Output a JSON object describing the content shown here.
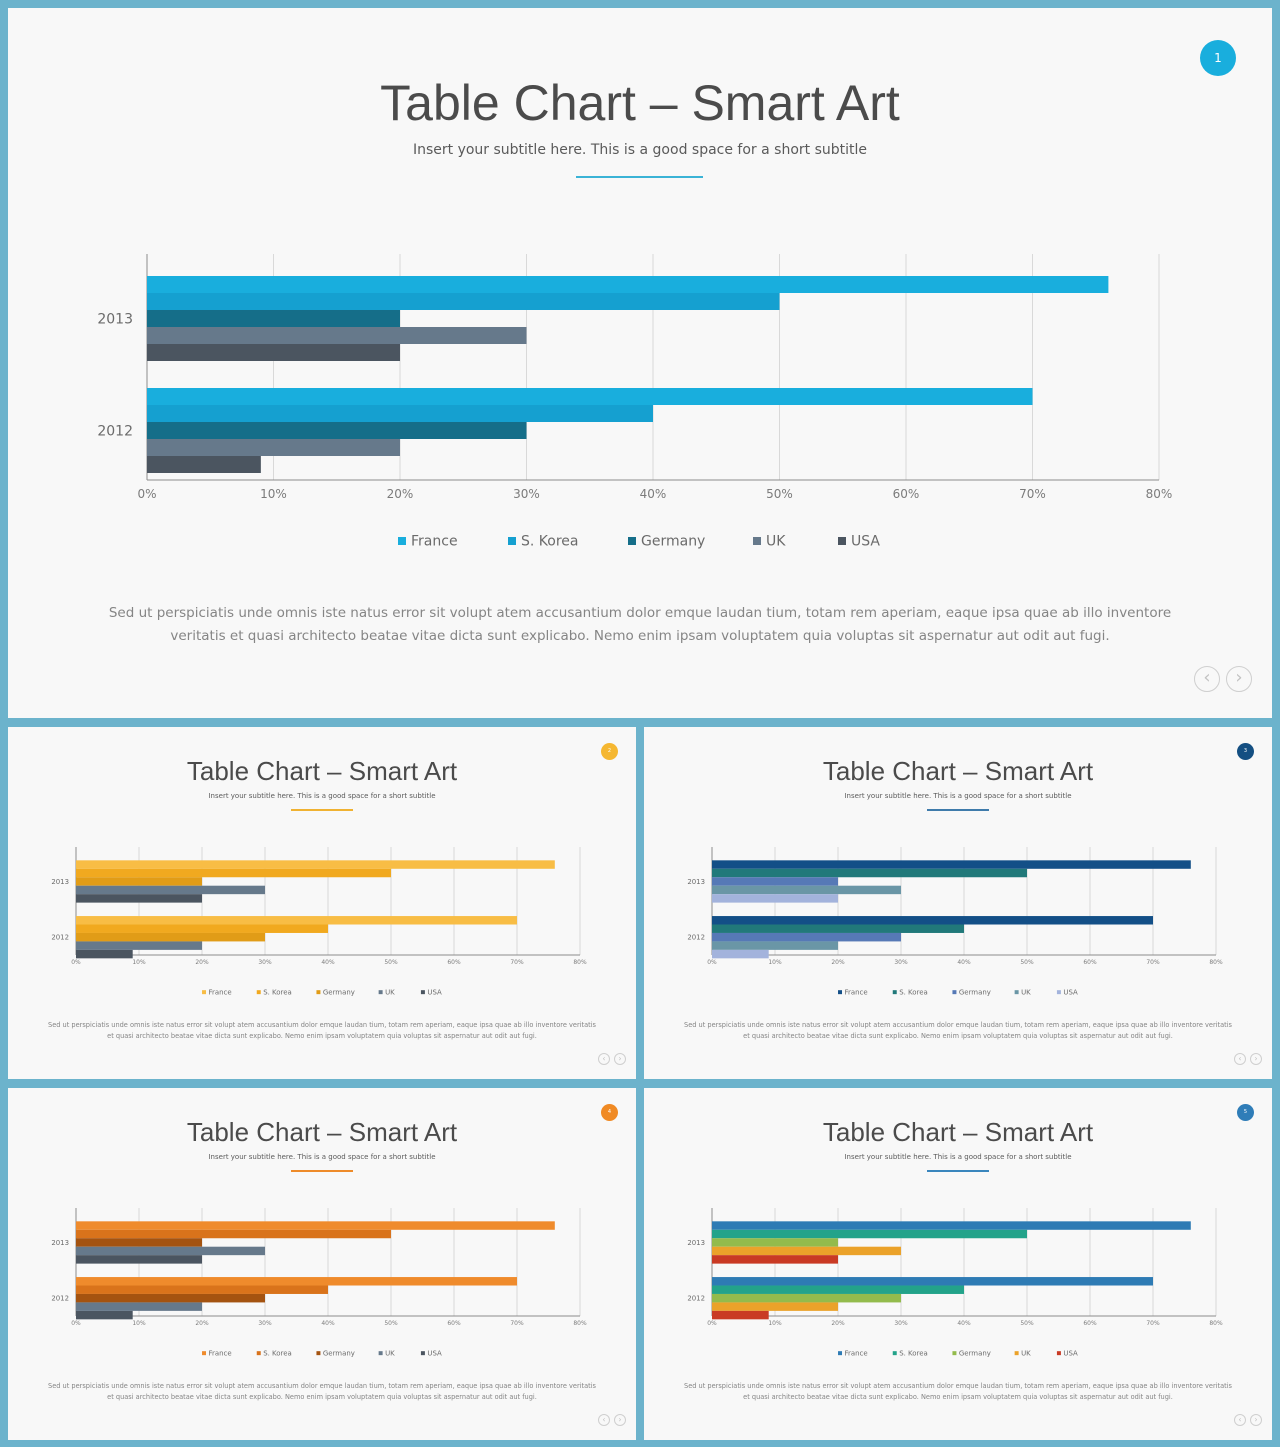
{
  "chart_data": [
    {
      "type": "bar",
      "orientation": "horizontal",
      "title": "Table Chart – Smart Art",
      "categories": [
        "2013",
        "2012"
      ],
      "xlim": [
        0,
        80
      ],
      "x_ticks": [
        "0%",
        "10%",
        "20%",
        "30%",
        "40%",
        "50%",
        "60%",
        "70%",
        "80%"
      ],
      "grid": true,
      "legend_position": "bottom",
      "series": [
        {
          "name": "France",
          "values": [
            76,
            70
          ]
        },
        {
          "name": "S. Korea",
          "values": [
            50,
            40
          ]
        },
        {
          "name": "Germany",
          "values": [
            20,
            30
          ]
        },
        {
          "name": "UK",
          "values": [
            30,
            20
          ]
        },
        {
          "name": "USA",
          "values": [
            20,
            9
          ]
        }
      ]
    },
    {
      "type": "bar",
      "orientation": "horizontal",
      "title": "Table Chart – Smart Art",
      "categories": [
        "2013",
        "2012"
      ],
      "xlim": [
        0,
        80
      ],
      "x_ticks": [
        "0%",
        "10%",
        "20%",
        "30%",
        "40%",
        "50%",
        "60%",
        "70%",
        "80%"
      ],
      "grid": true,
      "legend_position": "bottom",
      "series": [
        {
          "name": "France",
          "values": [
            76,
            70
          ]
        },
        {
          "name": "S. Korea",
          "values": [
            50,
            40
          ]
        },
        {
          "name": "Germany",
          "values": [
            20,
            30
          ]
        },
        {
          "name": "UK",
          "values": [
            30,
            20
          ]
        },
        {
          "name": "USA",
          "values": [
            20,
            9
          ]
        }
      ]
    },
    {
      "type": "bar",
      "orientation": "horizontal",
      "title": "Table Chart – Smart Art",
      "categories": [
        "2013",
        "2012"
      ],
      "xlim": [
        0,
        80
      ],
      "x_ticks": [
        "0%",
        "10%",
        "20%",
        "30%",
        "40%",
        "50%",
        "60%",
        "70%",
        "80%"
      ],
      "grid": true,
      "legend_position": "bottom",
      "series": [
        {
          "name": "France",
          "values": [
            76,
            70
          ]
        },
        {
          "name": "S. Korea",
          "values": [
            50,
            40
          ]
        },
        {
          "name": "Germany",
          "values": [
            20,
            30
          ]
        },
        {
          "name": "UK",
          "values": [
            30,
            20
          ]
        },
        {
          "name": "USA",
          "values": [
            20,
            9
          ]
        }
      ]
    },
    {
      "type": "bar",
      "orientation": "horizontal",
      "title": "Table Chart – Smart Art",
      "categories": [
        "2013",
        "2012"
      ],
      "xlim": [
        0,
        80
      ],
      "x_ticks": [
        "0%",
        "10%",
        "20%",
        "30%",
        "40%",
        "50%",
        "60%",
        "70%",
        "80%"
      ],
      "grid": true,
      "legend_position": "bottom",
      "series": [
        {
          "name": "France",
          "values": [
            76,
            70
          ]
        },
        {
          "name": "S. Korea",
          "values": [
            50,
            40
          ]
        },
        {
          "name": "Germany",
          "values": [
            20,
            30
          ]
        },
        {
          "name": "UK",
          "values": [
            30,
            20
          ]
        },
        {
          "name": "USA",
          "values": [
            20,
            9
          ]
        }
      ]
    },
    {
      "type": "bar",
      "orientation": "horizontal",
      "title": "Table Chart – Smart Art",
      "categories": [
        "2013",
        "2012"
      ],
      "xlim": [
        0,
        80
      ],
      "x_ticks": [
        "0%",
        "10%",
        "20%",
        "30%",
        "40%",
        "50%",
        "60%",
        "70%",
        "80%"
      ],
      "grid": true,
      "legend_position": "bottom",
      "series": [
        {
          "name": "France",
          "values": [
            76,
            70
          ]
        },
        {
          "name": "S. Korea",
          "values": [
            50,
            40
          ]
        },
        {
          "name": "Germany",
          "values": [
            20,
            30
          ]
        },
        {
          "name": "UK",
          "values": [
            30,
            20
          ]
        },
        {
          "name": "USA",
          "values": [
            20,
            9
          ]
        }
      ]
    }
  ],
  "slides": [
    {
      "title": "Table Chart – Smart Art",
      "subtitle": "Insert your subtitle here. This is a good space for a short subtitle",
      "badge": "1",
      "badge_color": "#19aedd",
      "accent_color": "#3bb3d6",
      "palette": [
        "#19aedd",
        "#15a0d0",
        "#156e89",
        "#66798b",
        "#4b5560"
      ],
      "body": "Sed ut perspiciatis unde omnis iste natus error sit volupt atem accusantium dolor emque laudan tium, totam rem aperiam, eaque ipsa quae ab illo inventore veritatis et quasi architecto beatae vitae dicta sunt explicabo. Nemo enim ipsam voluptatem quia voluptas sit aspernatur aut odit aut fugi.",
      "nav_prev": "‹",
      "nav_next": "›"
    },
    {
      "title": "Table Chart – Smart Art",
      "subtitle": "Insert your subtitle here. This is a good space for a short subtitle",
      "badge": "2",
      "badge_color": "#f5b731",
      "accent_color": "#f0b232",
      "palette": [
        "#f8bd45",
        "#f1a91f",
        "#e19c17",
        "#66798b",
        "#4b5560"
      ],
      "body": "Sed ut perspiciatis unde omnis iste natus error sit volupt atem accusantium dolor emque laudan tium, totam rem aperiam, eaque ipsa quae ab illo inventore veritatis et quasi architecto beatae vitae dicta sunt explicabo. Nemo enim ipsam voluptatem quia voluptas sit aspernatur aut odit aut fugi.",
      "nav_prev": "‹",
      "nav_next": "›"
    },
    {
      "title": "Table Chart – Smart Art",
      "subtitle": "Insert your subtitle here. This is a good space for a short subtitle",
      "badge": "3",
      "badge_color": "#144f82",
      "accent_color": "#3f7bab",
      "palette": [
        "#134f87",
        "#21797a",
        "#5679b6",
        "#6a96a6",
        "#a3b3dc"
      ],
      "body": "Sed ut perspiciatis unde omnis iste natus error sit volupt atem accusantium dolor emque laudan tium, totam rem aperiam, eaque ipsa quae ab illo inventore veritatis et quasi architecto beatae vitae dicta sunt explicabo. Nemo enim ipsam voluptatem quia voluptas sit aspernatur aut odit aut fugi.",
      "nav_prev": "‹",
      "nav_next": "›"
    },
    {
      "title": "Table Chart – Smart Art",
      "subtitle": "Insert your subtitle here. This is a good space for a short subtitle",
      "badge": "4",
      "badge_color": "#f08a24",
      "accent_color": "#ee8b2a",
      "palette": [
        "#ef8b2c",
        "#d9731b",
        "#a45310",
        "#66798b",
        "#4b5560"
      ],
      "body": "Sed ut perspiciatis unde omnis iste natus error sit volupt atem accusantium dolor emque laudan tium, totam rem aperiam, eaque ipsa quae ab illo inventore veritatis et quasi architecto beatae vitae dicta sunt explicabo. Nemo enim ipsam voluptatem quia voluptas sit aspernatur aut odit aut fugi.",
      "nav_prev": "‹",
      "nav_next": "›"
    },
    {
      "title": "Table Chart – Smart Art",
      "subtitle": "Insert your subtitle here. This is a good space for a short subtitle",
      "badge": "5",
      "badge_color": "#2f7db8",
      "accent_color": "#3a86bd",
      "palette": [
        "#2e7bb4",
        "#23a38a",
        "#93bb4c",
        "#eba22a",
        "#c93a24"
      ],
      "body": "Sed ut perspiciatis unde omnis iste natus error sit volupt atem accusantium dolor emque laudan tium, totam rem aperiam, eaque ipsa quae ab illo inventore veritatis et quasi architecto beatae vitae dicta sunt explicabo. Nemo enim ipsam voluptatem quia voluptas sit aspernatur aut odit aut fugi.",
      "nav_prev": "‹",
      "nav_next": "›"
    }
  ]
}
